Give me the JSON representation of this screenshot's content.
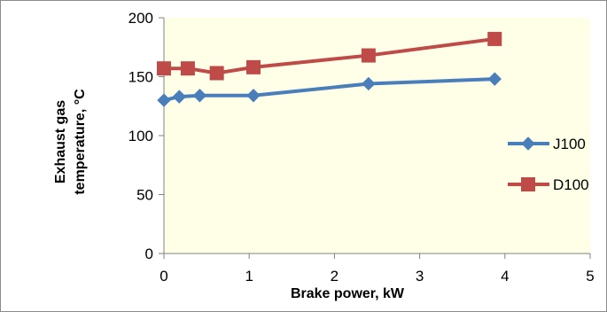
{
  "chart_data": {
    "type": "line",
    "title": "",
    "xlabel": "Brake power, kW",
    "ylabel_lines": [
      "Exhaust gas",
      "temperature, °C"
    ],
    "xlim": [
      0,
      5
    ],
    "ylim": [
      0,
      200
    ],
    "x_ticks": [
      "0",
      "1",
      "2",
      "3",
      "4",
      "5"
    ],
    "y_ticks": [
      "0",
      "50",
      "100",
      "150",
      "200"
    ],
    "grid": false,
    "legend_position": "right",
    "series": [
      {
        "name": "J100",
        "color": "#4a7ebb",
        "marker": "diamond",
        "x": [
          0.0,
          0.18,
          0.42,
          1.05,
          2.4,
          3.88
        ],
        "y": [
          130,
          133,
          134,
          134,
          144,
          148
        ]
      },
      {
        "name": "D100",
        "color": "#be4b48",
        "marker": "square",
        "x": [
          0.0,
          0.28,
          0.62,
          1.05,
          2.4,
          3.88
        ],
        "y": [
          157,
          157,
          153,
          158,
          168,
          182
        ]
      }
    ]
  }
}
